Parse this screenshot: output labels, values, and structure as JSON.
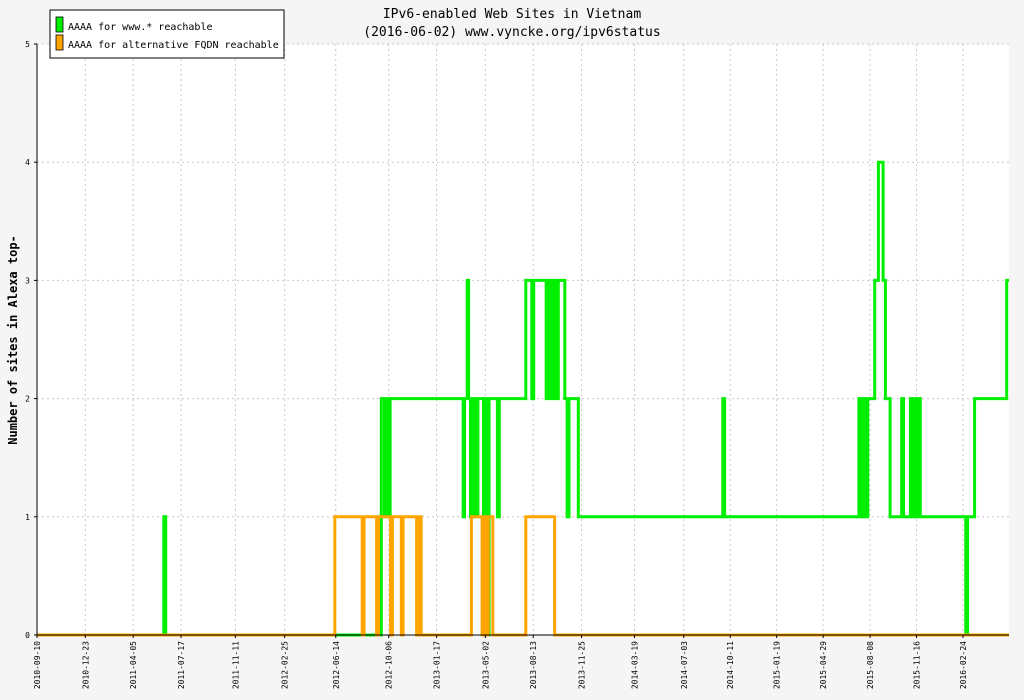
{
  "colors": {
    "background": "#f5f5f5",
    "plot_background": "#ffffff",
    "grid": "#c8c8c8",
    "green": "#00ee00",
    "orange": "#ffa500"
  },
  "chart_data": {
    "type": "line",
    "title": "IPv6-enabled Web Sites in Vietnam",
    "subtitle": "(2016-06-02) www.vyncke.org/ipv6status",
    "xlabel": "",
    "ylabel": "Number of sites in Alexa top-",
    "ylim": [
      0,
      5
    ],
    "yticks": [
      0,
      1,
      2,
      3,
      4,
      5
    ],
    "xlim": [
      "2010-09-10",
      "2016-06-02"
    ],
    "xticks": [
      "2010-09-10",
      "2010-12-23",
      "2011-04-05",
      "2011-07-17",
      "2011-11-11",
      "2012-02-25",
      "2012-06-14",
      "2012-10-06",
      "2013-01-17",
      "2013-05-02",
      "2013-08-13",
      "2013-11-25",
      "2014-03-19",
      "2014-07-03",
      "2014-10-11",
      "2015-01-19",
      "2015-04-29",
      "2015-08-08",
      "2015-11-16",
      "2016-02-24"
    ],
    "grid": true,
    "legend_position": "top-left",
    "series": [
      {
        "name": "AAAA for www.* reachable",
        "color": "#00ee00",
        "points": [
          [
            "2010-09-10",
            0
          ],
          [
            "2011-06-10",
            0
          ],
          [
            "2011-06-10",
            1
          ],
          [
            "2011-06-14",
            1
          ],
          [
            "2011-06-14",
            0
          ],
          [
            "2012-09-20",
            0
          ],
          [
            "2012-09-20",
            2
          ],
          [
            "2012-09-27",
            2
          ],
          [
            "2012-09-27",
            1
          ],
          [
            "2012-10-01",
            1
          ],
          [
            "2012-10-01",
            2
          ],
          [
            "2012-10-05",
            2
          ],
          [
            "2012-10-05",
            1
          ],
          [
            "2012-10-09",
            1
          ],
          [
            "2012-10-09",
            2
          ],
          [
            "2013-03-15",
            2
          ],
          [
            "2013-03-15",
            1
          ],
          [
            "2013-03-18",
            1
          ],
          [
            "2013-03-18",
            2
          ],
          [
            "2013-03-24",
            2
          ],
          [
            "2013-03-24",
            3
          ],
          [
            "2013-03-27",
            3
          ],
          [
            "2013-03-27",
            2
          ],
          [
            "2013-03-31",
            2
          ],
          [
            "2013-03-31",
            1
          ],
          [
            "2013-04-05",
            1
          ],
          [
            "2013-04-05",
            2
          ],
          [
            "2013-04-10",
            2
          ],
          [
            "2013-04-10",
            1
          ],
          [
            "2013-04-16",
            1
          ],
          [
            "2013-04-16",
            2
          ],
          [
            "2013-04-28",
            2
          ],
          [
            "2013-04-28",
            0
          ],
          [
            "2013-05-02",
            0
          ],
          [
            "2013-05-02",
            2
          ],
          [
            "2013-05-06",
            2
          ],
          [
            "2013-05-06",
            0
          ],
          [
            "2013-05-10",
            0
          ],
          [
            "2013-05-10",
            2
          ],
          [
            "2013-05-28",
            2
          ],
          [
            "2013-05-28",
            1
          ],
          [
            "2013-06-01",
            1
          ],
          [
            "2013-06-01",
            2
          ],
          [
            "2013-07-28",
            2
          ],
          [
            "2013-07-28",
            3
          ],
          [
            "2013-08-10",
            3
          ],
          [
            "2013-08-10",
            2
          ],
          [
            "2013-08-14",
            2
          ],
          [
            "2013-08-14",
            3
          ],
          [
            "2013-09-10",
            3
          ],
          [
            "2013-09-10",
            2
          ],
          [
            "2013-09-13",
            2
          ],
          [
            "2013-09-13",
            3
          ],
          [
            "2013-09-17",
            3
          ],
          [
            "2013-09-17",
            2
          ],
          [
            "2013-09-20",
            2
          ],
          [
            "2013-09-20",
            3
          ],
          [
            "2013-09-24",
            3
          ],
          [
            "2013-09-24",
            2
          ],
          [
            "2013-09-28",
            2
          ],
          [
            "2013-09-28",
            3
          ],
          [
            "2013-10-02",
            3
          ],
          [
            "2013-10-02",
            2
          ],
          [
            "2013-10-06",
            2
          ],
          [
            "2013-10-06",
            3
          ],
          [
            "2013-10-20",
            3
          ],
          [
            "2013-10-20",
            2
          ],
          [
            "2013-10-25",
            2
          ],
          [
            "2013-10-25",
            1
          ],
          [
            "2013-10-29",
            1
          ],
          [
            "2013-10-29",
            2
          ],
          [
            "2013-11-18",
            2
          ],
          [
            "2013-11-18",
            1
          ],
          [
            "2013-11-24",
            1
          ],
          [
            "2014-09-25",
            1
          ],
          [
            "2014-09-25",
            2
          ],
          [
            "2014-09-29",
            2
          ],
          [
            "2014-09-29",
            1
          ],
          [
            "2015-07-15",
            1
          ],
          [
            "2015-07-15",
            2
          ],
          [
            "2015-07-19",
            2
          ],
          [
            "2015-07-19",
            1
          ],
          [
            "2015-07-25",
            1
          ],
          [
            "2015-07-25",
            2
          ],
          [
            "2015-07-29",
            2
          ],
          [
            "2015-07-29",
            1
          ],
          [
            "2015-08-03",
            1
          ],
          [
            "2015-08-03",
            2
          ],
          [
            "2015-08-18",
            2
          ],
          [
            "2015-08-18",
            3
          ],
          [
            "2015-08-26",
            3
          ],
          [
            "2015-08-26",
            4
          ],
          [
            "2015-09-05",
            4
          ],
          [
            "2015-09-05",
            3
          ],
          [
            "2015-09-10",
            3
          ],
          [
            "2015-09-10",
            2
          ],
          [
            "2015-09-20",
            2
          ],
          [
            "2015-09-20",
            1
          ],
          [
            "2015-10-15",
            1
          ],
          [
            "2015-10-15",
            2
          ],
          [
            "2015-10-19",
            2
          ],
          [
            "2015-10-19",
            1
          ],
          [
            "2015-11-03",
            1
          ],
          [
            "2015-11-03",
            2
          ],
          [
            "2015-11-07",
            2
          ],
          [
            "2015-11-07",
            1
          ],
          [
            "2015-11-12",
            1
          ],
          [
            "2015-11-12",
            2
          ],
          [
            "2015-11-16",
            2
          ],
          [
            "2015-11-16",
            1
          ],
          [
            "2015-11-20",
            1
          ],
          [
            "2015-11-20",
            2
          ],
          [
            "2015-11-24",
            2
          ],
          [
            "2015-11-24",
            1
          ],
          [
            "2016-03-01",
            1
          ],
          [
            "2016-03-01",
            0
          ],
          [
            "2016-03-05",
            0
          ],
          [
            "2016-03-05",
            1
          ],
          [
            "2016-03-20",
            1
          ],
          [
            "2016-03-20",
            2
          ],
          [
            "2016-05-28",
            2
          ],
          [
            "2016-05-28",
            3
          ],
          [
            "2016-06-02",
            3
          ]
        ]
      },
      {
        "name": "AAAA for alternative FQDN reachable",
        "color": "#ffa500",
        "points": [
          [
            "2010-09-10",
            0
          ],
          [
            "2012-06-12",
            0
          ],
          [
            "2012-06-12",
            1
          ],
          [
            "2012-08-10",
            1
          ],
          [
            "2012-08-10",
            0
          ],
          [
            "2012-08-14",
            0
          ],
          [
            "2012-08-14",
            1
          ],
          [
            "2012-09-10",
            1
          ],
          [
            "2012-09-10",
            0
          ],
          [
            "2012-09-14",
            0
          ],
          [
            "2012-09-14",
            1
          ],
          [
            "2012-10-10",
            1
          ],
          [
            "2012-10-10",
            0
          ],
          [
            "2012-10-14",
            0
          ],
          [
            "2012-10-14",
            1
          ],
          [
            "2012-11-02",
            1
          ],
          [
            "2012-11-02",
            0
          ],
          [
            "2012-11-06",
            0
          ],
          [
            "2012-11-06",
            1
          ],
          [
            "2012-12-05",
            1
          ],
          [
            "2012-12-05",
            0
          ],
          [
            "2012-12-09",
            0
          ],
          [
            "2012-12-09",
            1
          ],
          [
            "2012-12-15",
            1
          ],
          [
            "2012-12-15",
            0
          ],
          [
            "2013-04-02",
            0
          ],
          [
            "2013-04-02",
            1
          ],
          [
            "2013-04-25",
            1
          ],
          [
            "2013-04-25",
            0
          ],
          [
            "2013-04-29",
            0
          ],
          [
            "2013-04-29",
            1
          ],
          [
            "2013-05-04",
            1
          ],
          [
            "2013-05-04",
            0
          ],
          [
            "2013-05-08",
            0
          ],
          [
            "2013-05-08",
            1
          ],
          [
            "2013-05-18",
            1
          ],
          [
            "2013-05-18",
            0
          ],
          [
            "2013-07-28",
            0
          ],
          [
            "2013-07-28",
            1
          ],
          [
            "2013-09-28",
            1
          ],
          [
            "2013-09-28",
            0
          ],
          [
            "2016-06-02",
            0
          ]
        ]
      }
    ]
  }
}
